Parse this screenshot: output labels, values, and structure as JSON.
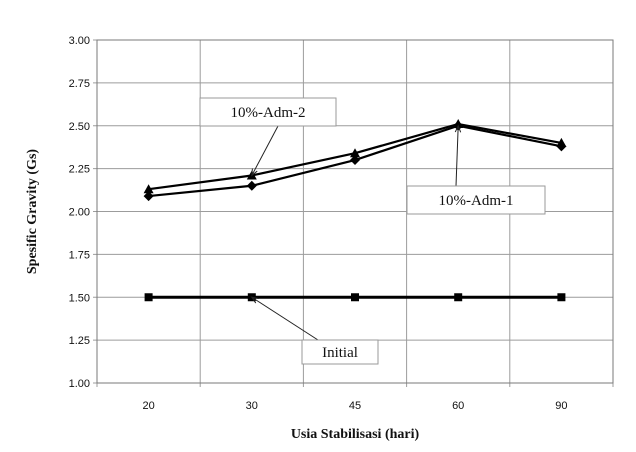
{
  "chart_data": {
    "type": "line",
    "categories": [
      "20",
      "30",
      "45",
      "60",
      "90"
    ],
    "series": [
      {
        "name": "10%-Adm-2",
        "values": [
          2.13,
          2.21,
          2.34,
          2.51,
          2.4
        ],
        "marker": "triangle",
        "color": "#000000"
      },
      {
        "name": "10%-Adm-1",
        "values": [
          2.09,
          2.15,
          2.3,
          2.5,
          2.38
        ],
        "marker": "diamond",
        "color": "#000000"
      },
      {
        "name": "Initial",
        "values": [
          1.5,
          1.5,
          1.5,
          1.5,
          1.5
        ],
        "marker": "square",
        "color": "#000000"
      }
    ],
    "xlabel": "Usia Stabilisasi (hari)",
    "ylabel": "Spesific Gravity (Gs)",
    "ylim": [
      1.0,
      3.0
    ],
    "yticks": [
      "1.00",
      "1.25",
      "1.50",
      "1.75",
      "2.00",
      "2.25",
      "2.50",
      "2.75",
      "3.00"
    ],
    "grid": true,
    "annotations": [
      {
        "text": "10%-Adm-2",
        "series": 0,
        "point": 1
      },
      {
        "text": "10%-Adm-1",
        "series": 1,
        "point": 3
      },
      {
        "text": "Initial",
        "series": 2,
        "point": 1
      }
    ]
  }
}
